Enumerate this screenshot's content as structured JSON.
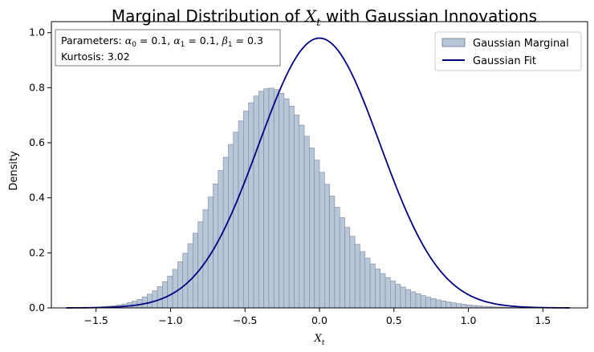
{
  "chart_data": {
    "type": "bar",
    "title": "Marginal Distribution of X_t with Gaussian Innovations",
    "title_parts": {
      "prefix": "Marginal Distribution of ",
      "var": "X",
      "sub": "t",
      "suffix": " with Gaussian Innovations"
    },
    "xlabel": "X_t",
    "xlabel_parts": {
      "var": "X",
      "sub": "t"
    },
    "ylabel": "Density",
    "xlim": [
      -1.8,
      1.8
    ],
    "ylim": [
      0.0,
      1.04
    ],
    "xticks": [
      -1.5,
      -1.0,
      -0.5,
      0.0,
      0.5,
      1.0,
      1.5
    ],
    "xtick_labels": [
      "−1.5",
      "−1.0",
      "−0.5",
      "0.0",
      "0.5",
      "1.0",
      "1.5"
    ],
    "yticks": [
      0.0,
      0.2,
      0.4,
      0.6,
      0.8,
      1.0
    ],
    "ytick_labels": [
      "0.0",
      "0.2",
      "0.4",
      "0.6",
      "0.8",
      "1.0"
    ],
    "legend_position": "top-right",
    "annotation_position": "top-left",
    "grid": false,
    "histogram": {
      "name": "Gaussian Marginal",
      "color": "#b8c6da",
      "edge_color": "#7f8a99",
      "bin_start": -1.7,
      "bin_width": 0.034,
      "density": [
        0.0004,
        0.0006,
        0.0009,
        0.0013,
        0.0018,
        0.0025,
        0.0034,
        0.0046,
        0.0062,
        0.0083,
        0.011,
        0.0144,
        0.0188,
        0.0243,
        0.0312,
        0.0397,
        0.05,
        0.0625,
        0.0775,
        0.0952,
        0.116,
        0.14,
        0.1676,
        0.1987,
        0.2333,
        0.2714,
        0.3127,
        0.3567,
        0.403,
        0.4508,
        0.4993,
        0.5475,
        0.5943,
        0.6386,
        0.6793,
        0.7153,
        0.7457,
        0.7698,
        0.7869,
        0.7966,
        0.7987,
        0.7931,
        0.78,
        0.7598,
        0.7332,
        0.7009,
        0.6641,
        0.6238,
        0.5811,
        0.5371,
        0.4928,
        0.449,
        0.4066,
        0.3661,
        0.328,
        0.2927,
        0.2603,
        0.2309,
        0.2045,
        0.181,
        0.16,
        0.1414,
        0.125,
        0.1104,
        0.0975,
        0.086,
        0.0758,
        0.0667,
        0.0586,
        0.0514,
        0.0449,
        0.0391,
        0.0339,
        0.0293,
        0.0252,
        0.0215,
        0.0183,
        0.0155,
        0.013,
        0.0109,
        0.009,
        0.0074,
        0.0061,
        0.0049,
        0.0039,
        0.0031,
        0.0024,
        0.0018,
        0.0014,
        0.001,
        0.0007,
        0.0005,
        0.0003,
        0.0002,
        0.0001,
        0.0001,
        0.0,
        0.0,
        0.0,
        0.0
      ]
    },
    "fit": {
      "name": "Gaussian Fit",
      "color": "#000080",
      "mean": 0.0,
      "std": 0.407
    },
    "annotation_lines": {
      "params_prefix": "Parameters: ",
      "alpha0_value": "0.1",
      "alpha1_value": "0.1",
      "beta1_value": "0.3",
      "kurtosis": "Kurtosis: 3.02"
    }
  }
}
